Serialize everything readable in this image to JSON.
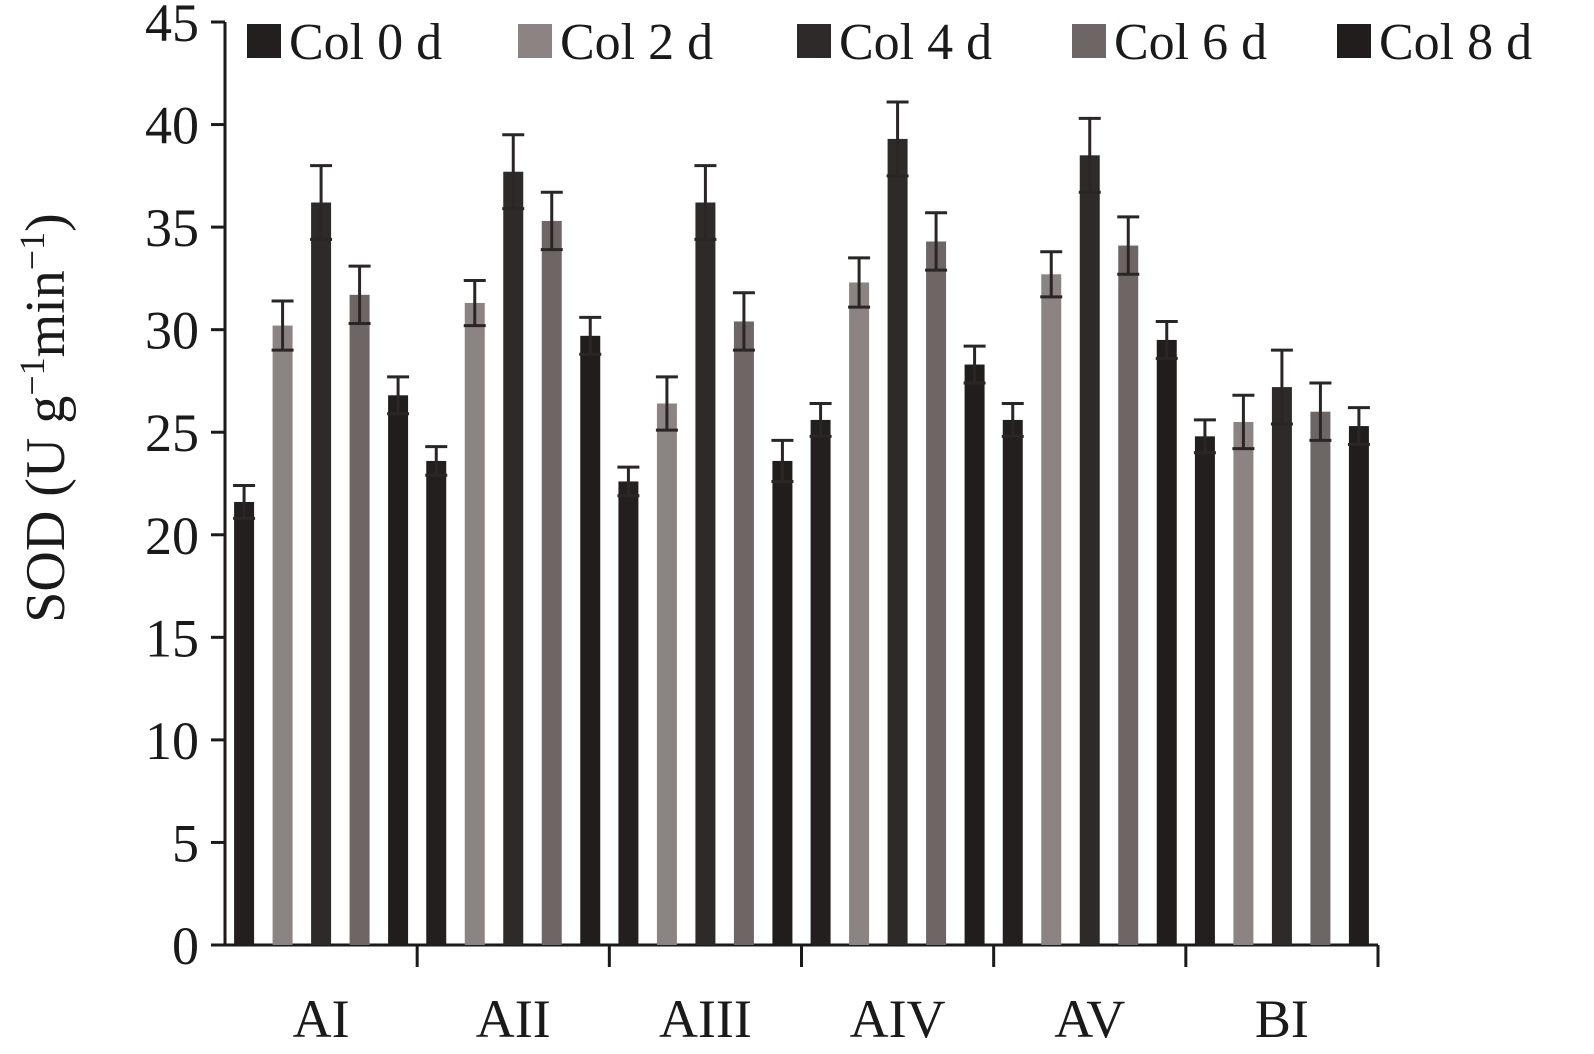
{
  "chart_data": {
    "type": "bar",
    "title": "",
    "xlabel": "",
    "ylabel": {
      "prefix": "SOD (U g",
      "sup1": "−1",
      "middle": "min",
      "sup2": "−1",
      "suffix": ")"
    },
    "ylim": [
      0,
      45
    ],
    "yticks": [
      0,
      5,
      10,
      15,
      20,
      25,
      30,
      35,
      40,
      45
    ],
    "grid": false,
    "legend_position": "top",
    "categories": [
      "AI",
      "AII",
      "AIII",
      "AIV",
      "AV",
      "BI"
    ],
    "series": [
      {
        "name": "Col 0 d",
        "color": "#231f1e",
        "values": [
          21.6,
          23.6,
          22.6,
          25.6,
          25.6,
          24.8
        ],
        "errors": [
          0.8,
          0.7,
          0.7,
          0.8,
          0.8,
          0.8
        ]
      },
      {
        "name": "Col 2 d",
        "color": "#8c8482",
        "values": [
          30.2,
          31.3,
          26.4,
          32.3,
          32.7,
          25.5
        ],
        "errors": [
          1.2,
          1.1,
          1.3,
          1.2,
          1.1,
          1.3
        ]
      },
      {
        "name": "Col 4 d",
        "color": "#2e2a29",
        "values": [
          36.2,
          37.7,
          36.2,
          39.3,
          38.5,
          27.2
        ],
        "errors": [
          1.8,
          1.8,
          1.8,
          1.8,
          1.8,
          1.8
        ]
      },
      {
        "name": "Col 6 d",
        "color": "#6e6664",
        "values": [
          31.7,
          35.3,
          30.4,
          34.3,
          34.1,
          26.0
        ],
        "errors": [
          1.4,
          1.4,
          1.4,
          1.4,
          1.4,
          1.4
        ]
      },
      {
        "name": "Col 8 d",
        "color": "#211d1c",
        "values": [
          26.8,
          29.7,
          23.6,
          28.3,
          29.5,
          25.3
        ],
        "errors": [
          0.9,
          0.9,
          1.0,
          0.9,
          0.9,
          0.9
        ]
      }
    ]
  }
}
